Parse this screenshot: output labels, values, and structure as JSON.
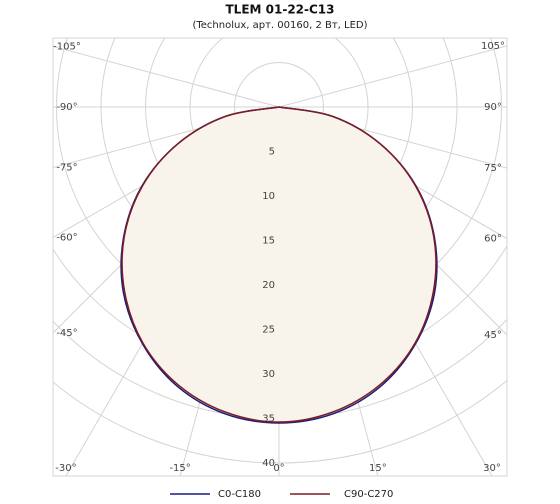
{
  "chart_data": {
    "type": "polar",
    "title": "TLEM 01-22-C13",
    "subtitle": "(Technolux, арт. 00160, 2 Вт, LED)",
    "x": [
      -90,
      -80,
      -70,
      -60,
      -50,
      -40,
      -30,
      -20,
      -10,
      0,
      10,
      20,
      30,
      40,
      50,
      60,
      70,
      80,
      90
    ],
    "series": [
      {
        "name": "C0-C180",
        "color": "#1c1c7c",
        "values": [
          0,
          6.2,
          12.1,
          17.8,
          22.8,
          27.2,
          30.7,
          33.4,
          35.0,
          35.5,
          35.0,
          33.4,
          30.7,
          27.2,
          22.8,
          17.8,
          12.1,
          6.2,
          0
        ]
      },
      {
        "name": "C90-C270",
        "color": "#7c1c24",
        "values": [
          0,
          6.1,
          12.1,
          17.7,
          22.7,
          27.0,
          30.6,
          33.2,
          34.8,
          35.4,
          34.8,
          33.2,
          30.6,
          27.0,
          22.7,
          17.7,
          12.1,
          6.1,
          0
        ]
      }
    ],
    "area_color": "#f8f4ec",
    "ylim": [
      0,
      40
    ],
    "yticks": [
      5,
      10,
      15,
      20,
      25,
      30,
      35,
      40
    ],
    "xticks": [
      {
        "value": -105,
        "label": "-105°"
      },
      {
        "value": -90,
        "label": "-90°"
      },
      {
        "value": -75,
        "label": "-75°"
      },
      {
        "value": -60,
        "label": "-60°"
      },
      {
        "value": -45,
        "label": "-45°"
      },
      {
        "value": -30,
        "label": "-30°"
      },
      {
        "value": -15,
        "label": "-15°"
      },
      {
        "value": 0,
        "label": "0°"
      },
      {
        "value": 15,
        "label": "15°"
      },
      {
        "value": 30,
        "label": "30°"
      },
      {
        "value": 45,
        "label": "45°"
      },
      {
        "value": 60,
        "label": "60°"
      },
      {
        "value": 75,
        "label": "75°"
      },
      {
        "value": 90,
        "label": "90°"
      },
      {
        "value": 105,
        "label": "105°"
      }
    ],
    "grid": true
  }
}
